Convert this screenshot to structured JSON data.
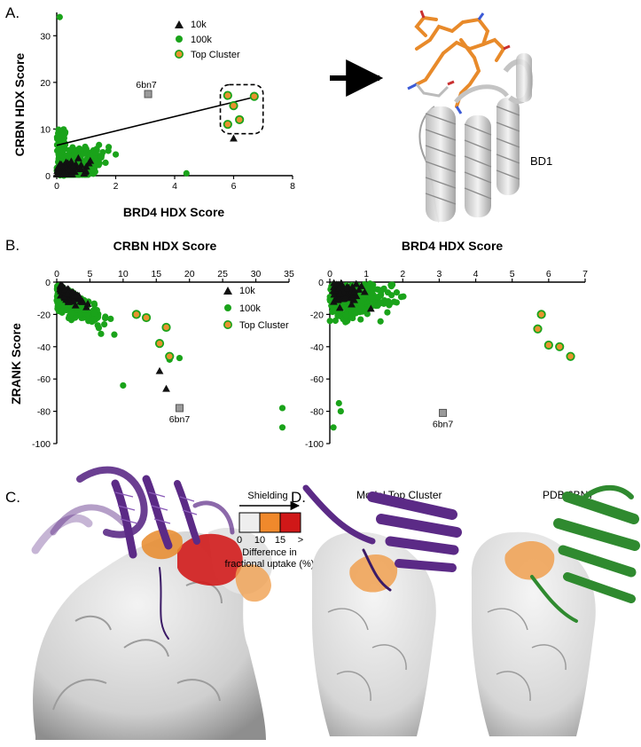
{
  "panels": {
    "A": "A.",
    "B": "B.",
    "C": "C.",
    "D": "D."
  },
  "legend": {
    "tenk": "10k",
    "hundredk": "100k",
    "top": "Top Cluster"
  },
  "colors": {
    "green": "#1aa31a",
    "orange": "#e8932e",
    "black": "#111111",
    "grey_marker": "#9a9a9a",
    "purple": "#5b2a86",
    "dark_green": "#2f8a2f",
    "shield_low": "#eeeeee",
    "shield_mid": "#f0892c",
    "shield_high": "#d01818"
  },
  "structure_A": {
    "label": "BD1"
  },
  "shielding_key": {
    "title": "Shielding",
    "ticks": [
      "0",
      "10",
      "15",
      ">"
    ],
    "caption_line1": "Difference in",
    "caption_line2": "fractional uptake (%)"
  },
  "panel_D": {
    "left_title": "Model Top Cluster",
    "right_title": "PDB 6BN7"
  },
  "chart_data": [
    {
      "id": "A",
      "type": "scatter",
      "xlabel": "BRD4 HDX Score",
      "ylabel": "CRBN HDX Score",
      "xlim": [
        0,
        8
      ],
      "ylim": [
        0,
        35
      ],
      "xticks": [
        0,
        2,
        4,
        6,
        8
      ],
      "yticks": [
        0,
        10,
        20,
        30
      ],
      "annotation": "6bn7",
      "ref_point": [
        3.1,
        17.5
      ],
      "fit_line": [
        [
          0,
          6.5
        ],
        [
          6.8,
          17
        ]
      ],
      "top_cluster": [
        [
          5.8,
          17.2
        ],
        [
          6.0,
          15.0
        ],
        [
          6.2,
          12.0
        ],
        [
          5.8,
          11.0
        ],
        [
          6.7,
          17.0
        ]
      ],
      "legend": "top-right"
    },
    {
      "id": "B1",
      "type": "scatter",
      "title": "CRBN HDX Score",
      "ylabel": "ZRANK Score",
      "xlim": [
        0,
        35
      ],
      "ylim": [
        -100,
        0
      ],
      "xticks": [
        0,
        5,
        10,
        15,
        20,
        25,
        30,
        35
      ],
      "yticks": [
        0,
        -20,
        -40,
        -60,
        -80,
        -100
      ],
      "annotation": "6bn7",
      "ref_point": [
        18.5,
        -78
      ],
      "top_cluster": [
        [
          12.0,
          -20
        ],
        [
          16.5,
          -28
        ],
        [
          15.5,
          -38
        ],
        [
          17.0,
          -46
        ],
        [
          13.5,
          -22
        ]
      ],
      "outliers_green": [
        [
          34,
          -78
        ],
        [
          34,
          -90
        ],
        [
          17,
          -48
        ],
        [
          18.5,
          -47
        ],
        [
          10.0,
          -64
        ]
      ],
      "legend": "top-right"
    },
    {
      "id": "B2",
      "type": "scatter",
      "title": "BRD4 HDX Score",
      "xlim": [
        0,
        7
      ],
      "ylim": [
        -100,
        0
      ],
      "xticks": [
        0,
        1,
        2,
        3,
        4,
        5,
        6,
        7
      ],
      "yticks": [
        0,
        -20,
        -40,
        -60,
        -80,
        -100
      ],
      "annotation": "6bn7",
      "ref_point": [
        3.1,
        -81
      ],
      "top_cluster": [
        [
          5.8,
          -20
        ],
        [
          5.7,
          -29
        ],
        [
          6.0,
          -39
        ],
        [
          6.3,
          -40
        ],
        [
          6.6,
          -46
        ]
      ]
    }
  ]
}
